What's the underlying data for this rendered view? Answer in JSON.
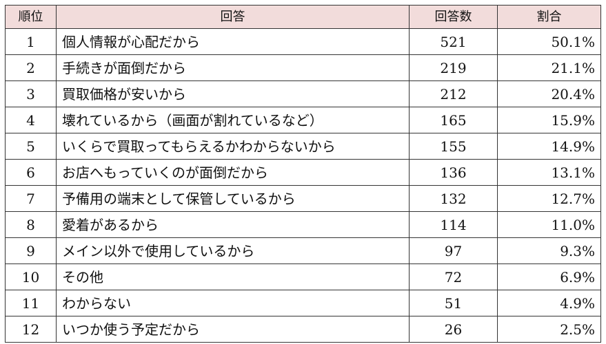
{
  "theme": {
    "header_bg": "#f2dcdb",
    "border": "#333333",
    "text": "#111111"
  },
  "table": {
    "headers": {
      "rank": "順位",
      "answer": "回答",
      "count": "回答数",
      "ratio": "割合"
    },
    "rows": [
      {
        "rank": "1",
        "answer": "個人情報が心配だから",
        "count": "521",
        "ratio": "50.1%"
      },
      {
        "rank": "2",
        "answer": "手続きが面倒だから",
        "count": "219",
        "ratio": "21.1%"
      },
      {
        "rank": "3",
        "answer": "買取価格が安いから",
        "count": "212",
        "ratio": "20.4%"
      },
      {
        "rank": "4",
        "answer": "壊れているから（画面が割れているなど）",
        "count": "165",
        "ratio": "15.9%"
      },
      {
        "rank": "5",
        "answer": "いくらで買取ってもらえるかわからないから",
        "count": "155",
        "ratio": "14.9%"
      },
      {
        "rank": "6",
        "answer": "お店へもっていくのが面倒だから",
        "count": "136",
        "ratio": "13.1%"
      },
      {
        "rank": "7",
        "answer": "予備用の端末として保管しているから",
        "count": "132",
        "ratio": "12.7%"
      },
      {
        "rank": "8",
        "answer": "愛着があるから",
        "count": "114",
        "ratio": "11.0%"
      },
      {
        "rank": "9",
        "answer": "メイン以外で使用しているから",
        "count": "97",
        "ratio": "9.3%"
      },
      {
        "rank": "10",
        "answer": "その他",
        "count": "72",
        "ratio": "6.9%"
      },
      {
        "rank": "11",
        "answer": "わからない",
        "count": "51",
        "ratio": "4.9%"
      },
      {
        "rank": "12",
        "answer": "いつか使う予定だから",
        "count": "26",
        "ratio": "2.5%"
      }
    ]
  }
}
